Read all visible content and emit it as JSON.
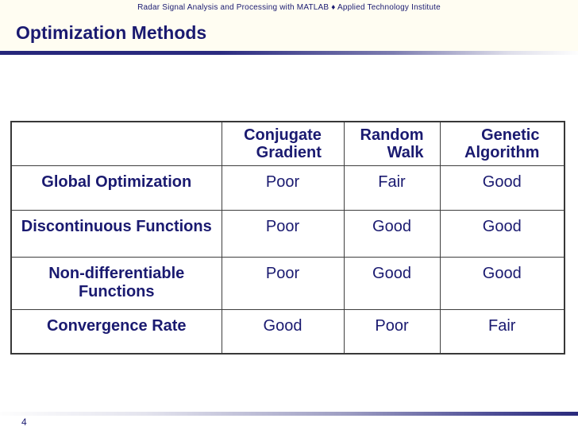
{
  "header": {
    "course_line": "Radar Signal Analysis and Processing with MATLAB ♦ Applied Technology Institute"
  },
  "title": "Optimization Methods",
  "footer": {
    "page_number": "4"
  },
  "colors": {
    "text_navy": "#1a1a70",
    "table_border": "#3e3e3e",
    "rule_navy": "#2a2a7c",
    "top_band_bg": "#fffdf2"
  },
  "table": {
    "columns": [
      "",
      "Conjugate\nGradient",
      "Random\nWalk",
      "Genetic\nAlgorithm"
    ],
    "rows": [
      {
        "label": "Global Optimization",
        "values": [
          "Poor",
          "Fair",
          "Good"
        ]
      },
      {
        "label": "Discontinuous Functions",
        "values": [
          "Poor",
          "Good",
          "Good"
        ]
      },
      {
        "label": "Non-differentiable\nFunctions",
        "values": [
          "Poor",
          "Good",
          "Good"
        ]
      },
      {
        "label": "Convergence Rate",
        "values": [
          "Good",
          "Poor",
          "Fair"
        ]
      }
    ]
  }
}
